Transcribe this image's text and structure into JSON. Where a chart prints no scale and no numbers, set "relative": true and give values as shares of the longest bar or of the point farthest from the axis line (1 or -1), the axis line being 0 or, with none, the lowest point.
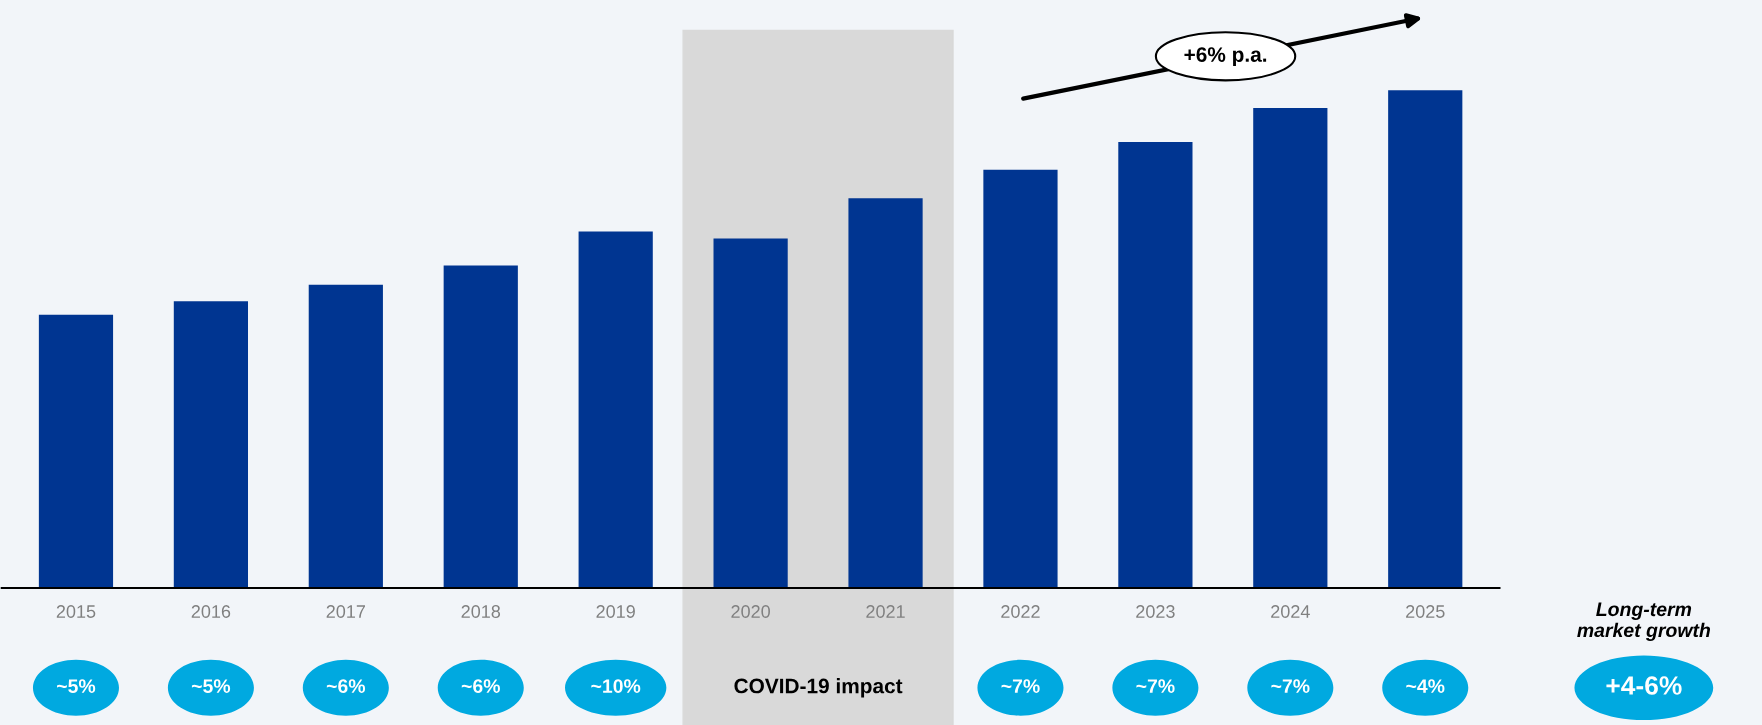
{
  "chart_data": {
    "type": "bar",
    "relative": true,
    "categories": [
      "2015",
      "2016",
      "2017",
      "2018",
      "2019",
      "2020",
      "2021",
      "2022",
      "2023",
      "2024",
      "2025"
    ],
    "values": [
      0.549,
      0.576,
      0.609,
      0.648,
      0.716,
      0.702,
      0.783,
      0.84,
      0.896,
      0.964,
      1
    ],
    "color": "#003591",
    "bands": [
      {
        "axis": "x",
        "from": "2020",
        "to": "2021",
        "label": "COVID-19 impact",
        "color": "#d9d9d9"
      }
    ],
    "annotations": [
      "~5%",
      "~5%",
      "~6%",
      "~6%",
      "~10%",
      "~7%",
      "~7%",
      "~7%",
      "~4%",
      "+6% p.a.",
      "Long-term\nmarket growth",
      "+4-6%"
    ]
  }
}
